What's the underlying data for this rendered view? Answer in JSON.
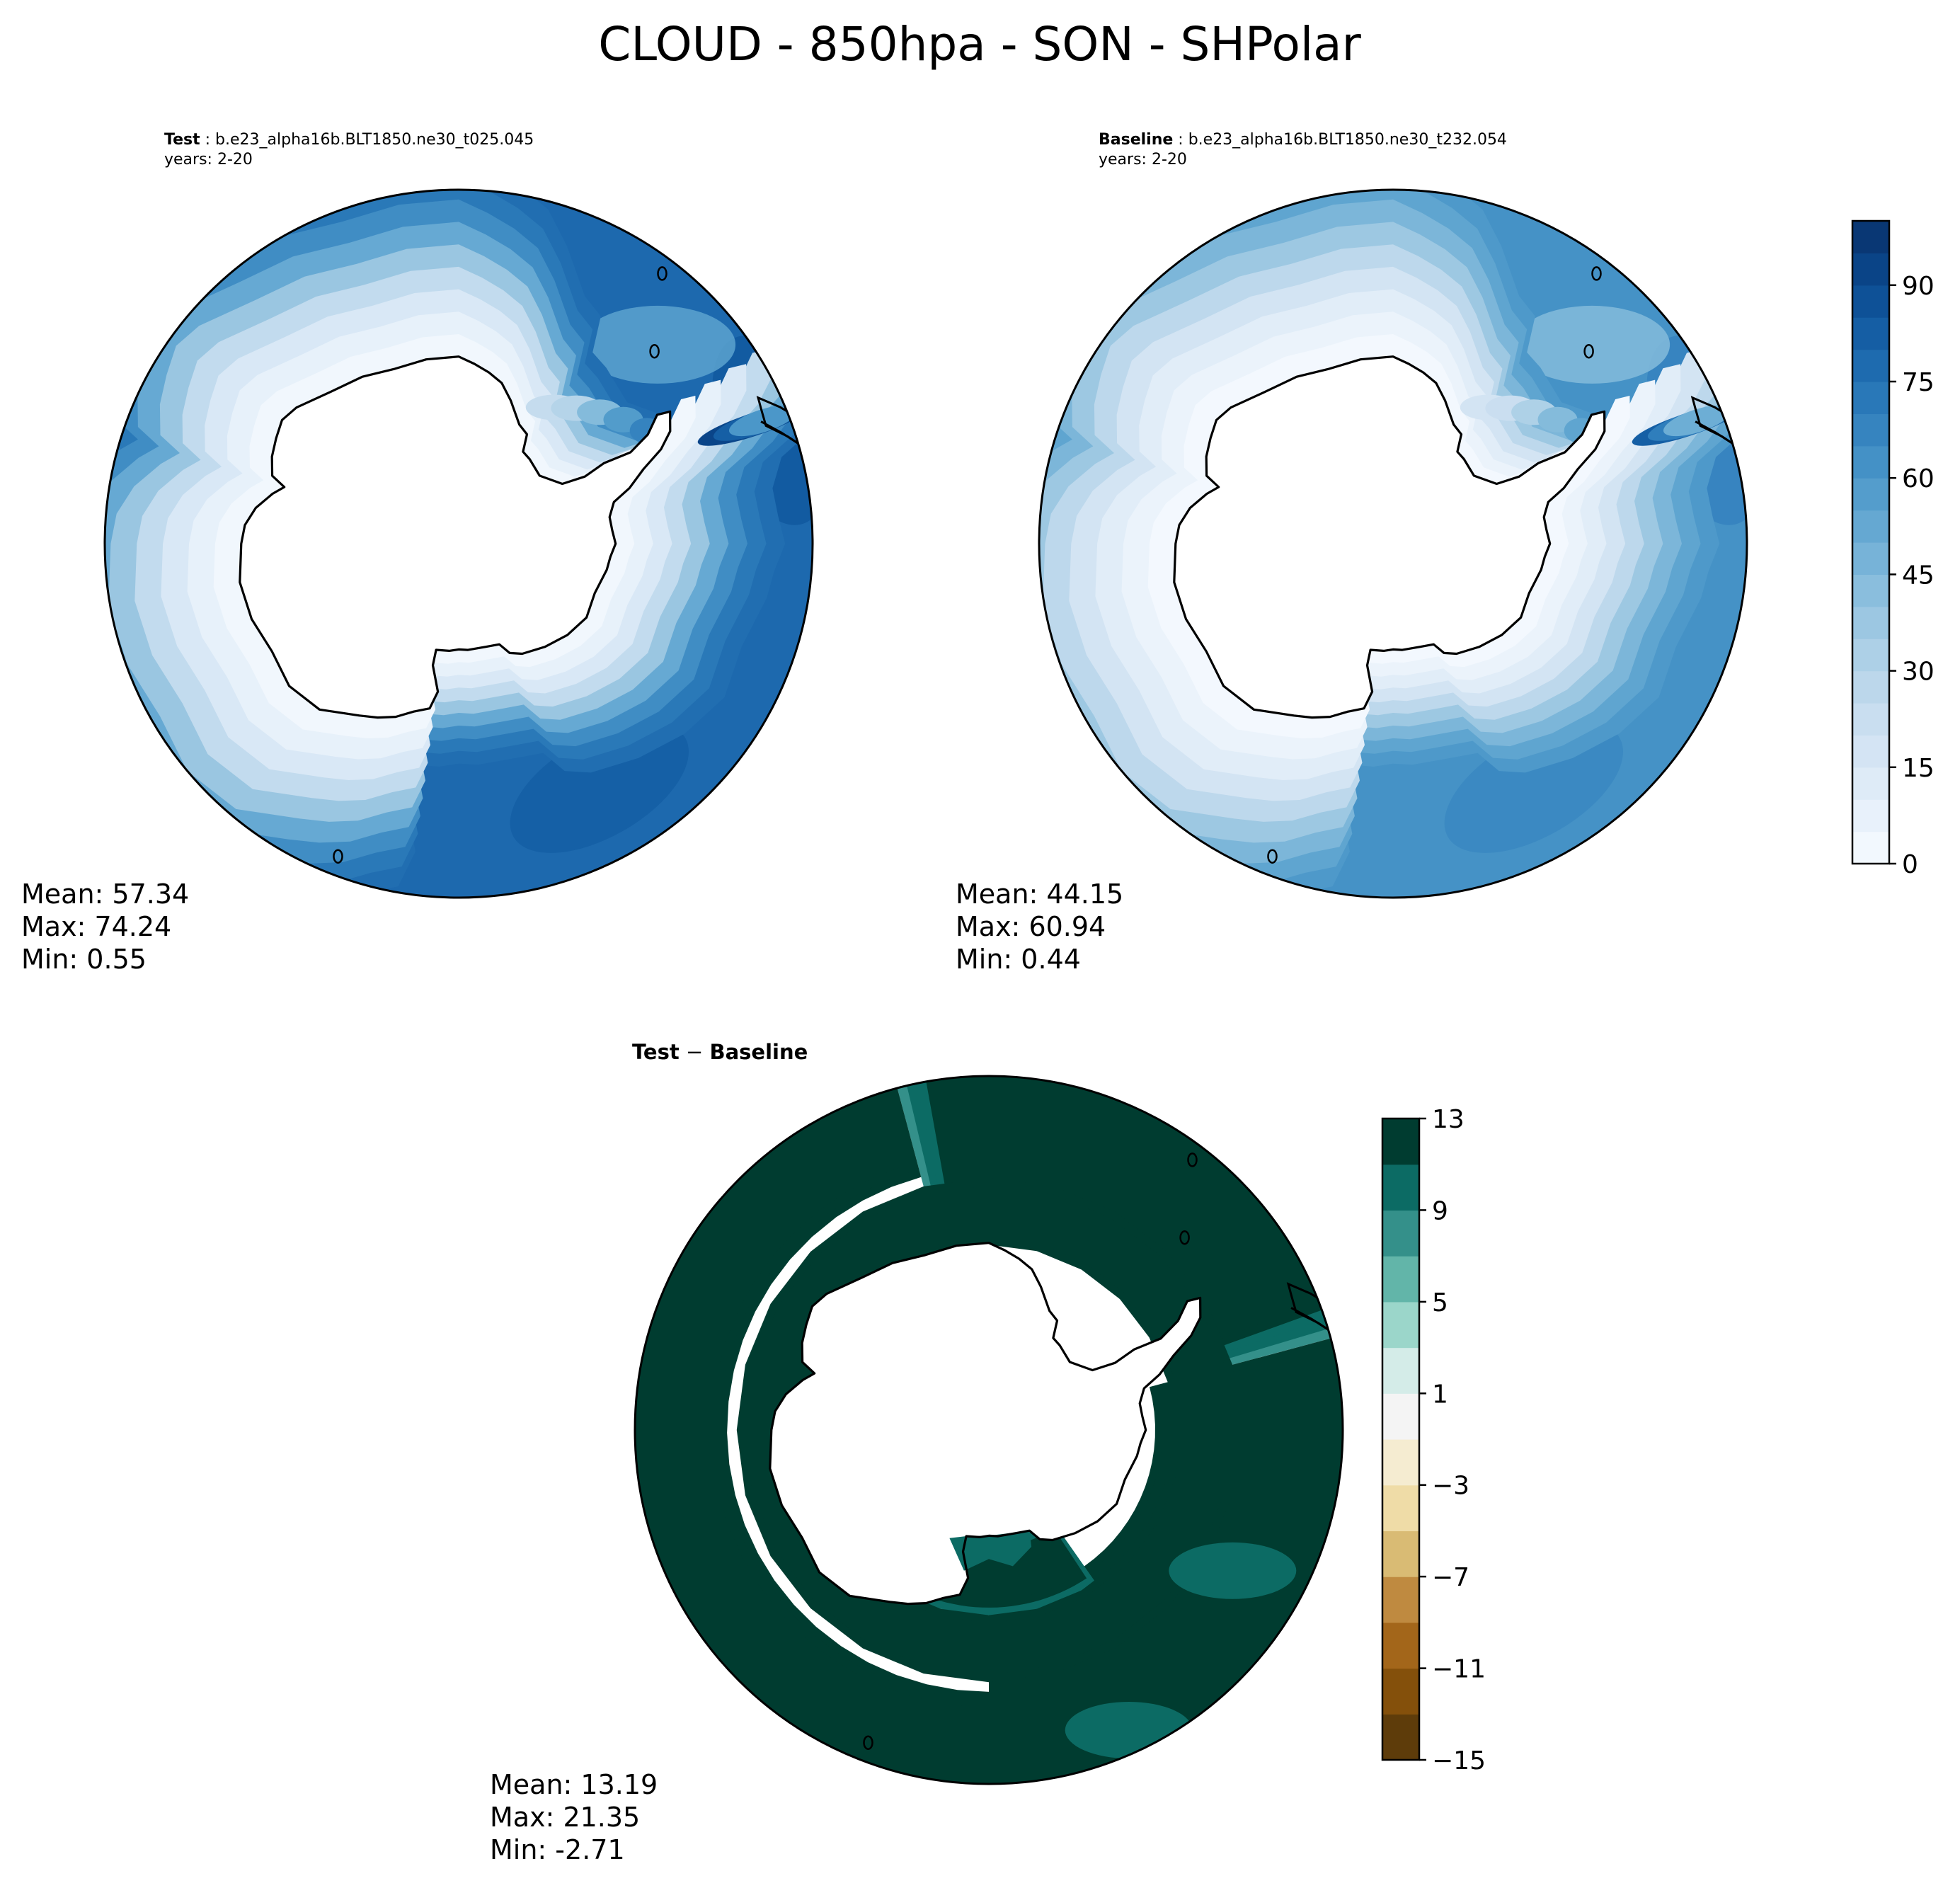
{
  "figure": {
    "title": "CLOUD - 850hpa - SON - SHPolar"
  },
  "chart_data": [
    {
      "type": "heatmap",
      "projection": "south-polar-stereographic",
      "panel_id": "test",
      "header_bold": "Test",
      "header_text": " : b.e23_alpha16b.BLT1850.ne30_t025.045",
      "years": "years: 2-20",
      "stats": {
        "mean": "Mean: 57.34",
        "max": "Max: 74.24",
        "min": "Min:  0.55"
      },
      "colormap": "Blues",
      "colors": [
        "#f7fbff",
        "#e3eef9",
        "#cfe1f2",
        "#b5d4e9",
        "#93c3df",
        "#6daed5",
        "#4b97c9",
        "#2f7ebc",
        "#1864aa",
        "#0a4a90",
        "#08306b"
      ],
      "field": {
        "open_ocean_level": 0.78,
        "band_levels": [
          0.03,
          0.08,
          0.15,
          0.25,
          0.38,
          0.52,
          0.64,
          0.72,
          0.76
        ],
        "shelf_levels": [
          0.24,
          0.3,
          0.44,
          0.58,
          0.68
        ],
        "maxima": [
          {
            "level": 0.88,
            "lon": 105,
            "lat": -52
          },
          {
            "level": 0.84,
            "lon": 150,
            "lat": -58
          },
          {
            "level": 0.84,
            "lon": -70,
            "lat": -55
          },
          {
            "level": 0.82,
            "lon": 0,
            "lat": -50
          },
          {
            "level": 0.82,
            "lon": 60,
            "lat": -50
          },
          {
            "level": 0.82,
            "lon": -150,
            "lat": -60
          }
        ],
        "minima": [
          {
            "level": 0.55,
            "lon": -45,
            "lat": -60
          },
          {
            "level": 0.6,
            "lon": -10,
            "lat": -48
          }
        ],
        "southern_america_band": [
          0.92,
          0.82,
          0.6
        ]
      }
    },
    {
      "type": "heatmap",
      "projection": "south-polar-stereographic",
      "panel_id": "baseline",
      "header_bold": "Baseline",
      "header_text": " : b.e23_alpha16b.BLT1850.ne30_t232.054",
      "years": "years: 2-20",
      "stats": {
        "mean": "Mean: 44.15",
        "max": "Max: 60.94",
        "min": "Min:  0.44"
      },
      "colormap": "Blues",
      "colors": [
        "#f7fbff",
        "#e3eef9",
        "#cfe1f2",
        "#b5d4e9",
        "#93c3df",
        "#6daed5",
        "#4b97c9",
        "#2f7ebc",
        "#1864aa",
        "#0a4a90",
        "#08306b"
      ],
      "colorbar": {
        "min": 0,
        "max": 100,
        "step": 5,
        "tick_values": [
          0,
          15,
          30,
          45,
          60,
          75,
          90
        ],
        "tick_labels": [
          "0",
          "15",
          "30",
          "45",
          "60",
          "75",
          "90"
        ]
      },
      "field": {
        "open_ocean_level": 0.62,
        "band_levels": [
          0.02,
          0.06,
          0.11,
          0.18,
          0.27,
          0.37,
          0.46,
          0.54,
          0.59
        ],
        "shelf_levels": [
          0.18,
          0.22,
          0.32,
          0.44,
          0.54
        ],
        "maxima": [
          {
            "level": 0.72,
            "lon": 105,
            "lat": -52
          },
          {
            "level": 0.68,
            "lon": 150,
            "lat": -58
          },
          {
            "level": 0.68,
            "lon": -70,
            "lat": -55
          },
          {
            "level": 0.66,
            "lon": 60,
            "lat": -52
          },
          {
            "level": 0.66,
            "lon": -150,
            "lat": -60
          }
        ],
        "minima": [
          {
            "level": 0.44,
            "lon": -45,
            "lat": -60
          },
          {
            "level": 0.48,
            "lon": -10,
            "lat": -48
          }
        ],
        "southern_america_band": [
          0.82,
          0.7,
          0.5
        ]
      }
    },
    {
      "type": "heatmap",
      "projection": "south-polar-stereographic",
      "panel_id": "difference",
      "header_bold": "Test",
      "header_minus": " − ",
      "header_bold2": "Baseline",
      "stats": {
        "mean": "Mean: 13.19",
        "max": "Max: 21.35",
        "min": "Min: -2.71"
      },
      "colormap": "BrBG",
      "colors": [
        "#5e3c0a",
        "#84500b",
        "#a3661a",
        "#bf8a40",
        "#d9bb74",
        "#efdca7",
        "#f5ecd1",
        "#f4f4f4",
        "#d4ece8",
        "#9bd6ca",
        "#62b5a9",
        "#34908a",
        "#0c6b64",
        "#003c30"
      ],
      "colorbar": {
        "min": -15,
        "max": 13,
        "step": 2,
        "tick_values": [
          -15,
          -11,
          -7,
          -3,
          1,
          5,
          9,
          13
        ],
        "tick_labels": [
          "−15",
          "−11",
          "−7",
          "−3",
          "1",
          "5",
          "9",
          "13"
        ]
      },
      "field": {
        "regions": [
          {
            "name": "atlantic-sector",
            "lon": [
              -75,
              15
            ],
            "lat": [
              -70,
              -40
            ],
            "levels": [
              8,
              9,
              10,
              11,
              12
            ]
          },
          {
            "name": "indian-pacific-arc",
            "lon": [
              15,
              180
            ],
            "lat": [
              -62,
              -40
            ],
            "levels": [
              11,
              12,
              12
            ]
          },
          {
            "name": "pacific-sector",
            "lon": [
              -180,
              -75
            ],
            "lat": [
              -72,
              -52
            ],
            "levels": [
              11,
              12
            ]
          },
          {
            "name": "ross-sea-shelf",
            "lon": [
              155,
              215
            ],
            "lat": [
              -78,
              -70
            ],
            "levels": [
              10,
              11,
              12
            ]
          },
          {
            "name": "coastal-fringe",
            "lon": [
              -180,
              180
            ],
            "lat": [
              -70,
              -63
            ],
            "levels": [
              11,
              12
            ]
          }
        ],
        "maxima": [
          {
            "level": 9,
            "lon": -120,
            "lat": -60
          },
          {
            "level": 10,
            "lon": -155,
            "lat": -55
          }
        ]
      }
    }
  ]
}
